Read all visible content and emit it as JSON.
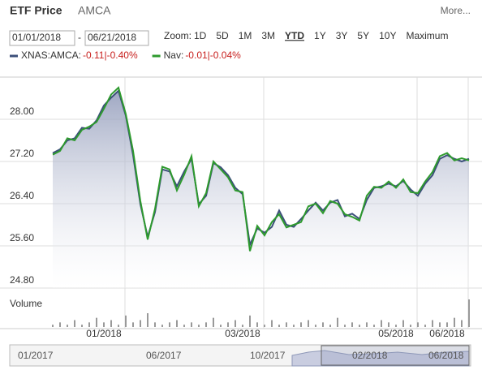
{
  "header": {
    "title": "ETF Price",
    "ticker": "AMCA",
    "more": "More..."
  },
  "controls": {
    "start_date": "01/01/2018",
    "separator": "-",
    "end_date": "06/21/2018",
    "zoom_label": "Zoom:",
    "zoom_buttons": [
      "1D",
      "5D",
      "1M",
      "3M",
      "YTD",
      "1Y",
      "3Y",
      "5Y",
      "10Y",
      "Maximum"
    ],
    "active": "YTD"
  },
  "legend": {
    "changes": [
      "-0.11|-0.40%",
      "-0.01|-0.04%"
    ]
  },
  "volume_label": "Volume",
  "navigator": {
    "labels": [
      "01/2017",
      "06/2017",
      "10/2017",
      "02/2018",
      "06/2018"
    ]
  },
  "chart_data": {
    "type": "line",
    "categories": [
      null,
      null,
      null,
      null,
      null,
      null,
      null,
      "01/2018",
      null,
      null,
      null,
      null,
      null,
      null,
      null,
      null,
      null,
      null,
      null,
      null,
      null,
      null,
      null,
      null,
      null,
      null,
      "03/2018",
      null,
      null,
      null,
      null,
      null,
      null,
      null,
      null,
      null,
      null,
      null,
      null,
      null,
      null,
      null,
      null,
      null,
      null,
      null,
      null,
      "05/2018",
      null,
      null,
      null,
      null,
      null,
      null,
      "06/2018",
      null,
      null,
      null
    ],
    "series": [
      {
        "name": "XNAS:AMCA:",
        "color": "#3c4f7a",
        "values": [
          27.36,
          27.43,
          27.6,
          27.64,
          27.84,
          27.82,
          27.98,
          28.26,
          28.41,
          28.54,
          28.07,
          27.32,
          26.39,
          25.77,
          26.24,
          27.05,
          27.01,
          26.73,
          27.01,
          27.25,
          26.39,
          26.55,
          27.17,
          27.09,
          26.94,
          26.7,
          26.58,
          25.62,
          25.93,
          25.85,
          25.96,
          26.27,
          26.0,
          25.96,
          26.11,
          26.27,
          26.42,
          26.27,
          26.42,
          26.47,
          26.16,
          26.21,
          26.11,
          26.47,
          26.7,
          26.73,
          26.78,
          26.73,
          26.83,
          26.67,
          26.55,
          26.78,
          26.94,
          27.25,
          27.32,
          27.25,
          27.2,
          27.25
        ]
      },
      {
        "name": "Nav:",
        "color": "#2e9a2e",
        "values": [
          27.33,
          27.4,
          27.64,
          27.6,
          27.8,
          27.86,
          27.95,
          28.2,
          28.47,
          28.6,
          28.1,
          27.4,
          26.45,
          25.72,
          26.3,
          27.1,
          27.05,
          26.65,
          26.95,
          27.3,
          26.35,
          26.6,
          27.2,
          27.05,
          26.9,
          26.65,
          26.62,
          25.5,
          25.98,
          25.8,
          26.05,
          26.2,
          25.95,
          26.0,
          26.05,
          26.35,
          26.4,
          26.22,
          26.45,
          26.4,
          26.2,
          26.15,
          26.08,
          26.55,
          26.72,
          26.7,
          26.82,
          26.7,
          26.86,
          26.62,
          26.6,
          26.82,
          27.0,
          27.3,
          27.36,
          27.22,
          27.26,
          27.22
        ]
      }
    ],
    "volume": [
      1,
      2,
      1,
      3,
      1,
      2,
      4,
      2,
      3,
      1,
      5,
      2,
      3,
      6,
      2,
      1,
      2,
      3,
      1,
      2,
      1,
      2,
      4,
      1,
      2,
      3,
      1,
      5,
      2,
      1,
      3,
      1,
      2,
      1,
      2,
      3,
      1,
      2,
      1,
      4,
      1,
      2,
      1,
      2,
      1,
      3,
      2,
      1,
      3,
      1,
      2,
      1,
      3,
      2,
      2,
      4,
      3,
      12
    ],
    "ylim": [
      24.8,
      28.8
    ],
    "yticks": [
      {
        "value": 24.8,
        "label": "24.80"
      },
      {
        "value": 25.6,
        "label": "25.60"
      },
      {
        "value": 26.4,
        "label": "26.40"
      },
      {
        "value": 27.2,
        "label": "27.20"
      },
      {
        "value": 28.0,
        "label": "28.00"
      }
    ],
    "grid": true
  }
}
